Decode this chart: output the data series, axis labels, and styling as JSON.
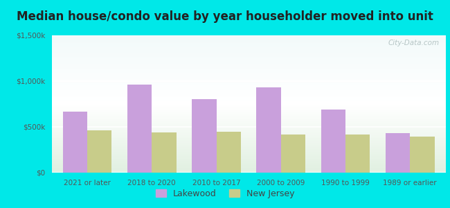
{
  "title": "Median house/condo value by year householder moved into unit",
  "categories": [
    "2021 or later",
    "2018 to 2020",
    "2010 to 2017",
    "2000 to 2009",
    "1990 to 1999",
    "1989 or earlier"
  ],
  "lakewood": [
    670000,
    960000,
    800000,
    930000,
    690000,
    430000
  ],
  "new_jersey": [
    460000,
    440000,
    450000,
    420000,
    415000,
    395000
  ],
  "lakewood_color": "#c9a0dc",
  "nj_color": "#c8cc8a",
  "ylim": [
    0,
    1500000
  ],
  "ytick_labels": [
    "$0",
    "$500k",
    "$1,000k",
    "$1,500k"
  ],
  "ytick_values": [
    0,
    500000,
    1000000,
    1500000
  ],
  "background_outer": "#00e8e8",
  "watermark": "City-Data.com",
  "legend_lakewood": "Lakewood",
  "legend_nj": "New Jersey",
  "title_fontsize": 12,
  "bar_width": 0.38
}
